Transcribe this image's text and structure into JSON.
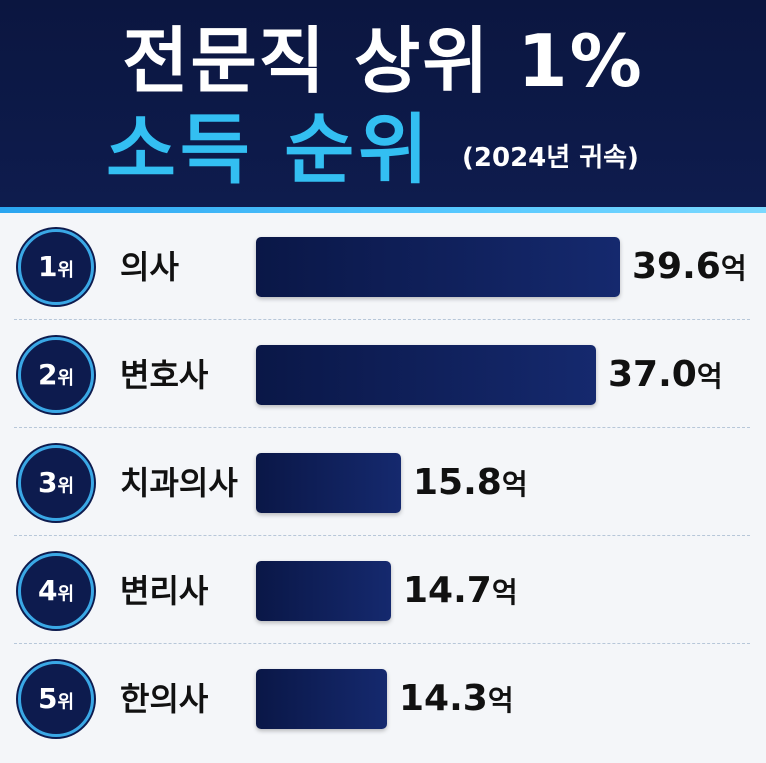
{
  "header": {
    "title_line1": "전문직 상위 1%",
    "title_line2": "소득 순위",
    "subtitle": "(2024년 귀속)"
  },
  "colors": {
    "header_bg": "#0b1640",
    "accent_cyan": "#33bff2",
    "bar_navy": "#0d1b4e"
  },
  "chart_data": {
    "type": "bar",
    "orientation": "horizontal",
    "title": "전문직 상위 1% 소득 순위",
    "subtitle": "(2024년 귀속)",
    "rank_suffix": "위",
    "unit": "억",
    "categories": [
      "의사",
      "변호사",
      "치과의사",
      "변리사",
      "한의사"
    ],
    "ranks": [
      "1",
      "2",
      "3",
      "4",
      "5"
    ],
    "values": [
      39.6,
      37.0,
      15.8,
      14.7,
      14.3
    ],
    "value_labels": [
      "39.6",
      "37.0",
      "15.8",
      "14.7",
      "14.3"
    ],
    "xlim": [
      0,
      39.6
    ],
    "grid": false
  }
}
